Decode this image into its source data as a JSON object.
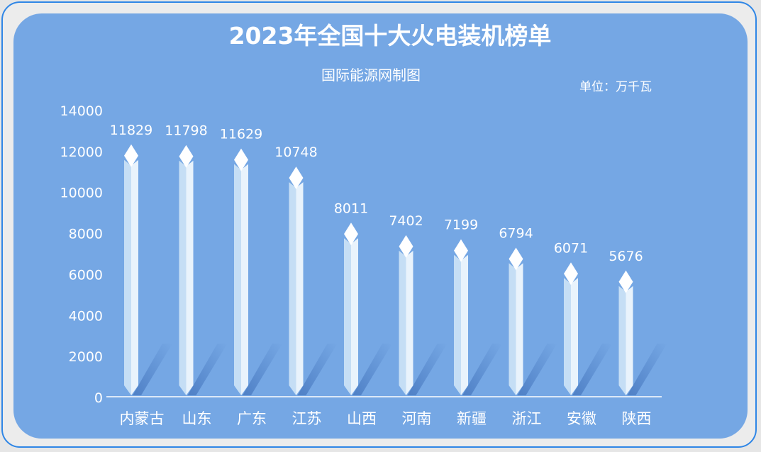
{
  "chart_data": {
    "type": "bar",
    "title": "2023年全国十大火电装机榜单",
    "subtitle": "国际能源网制图",
    "unit_label": "单位：万千瓦",
    "categories": [
      "内蒙古",
      "山东",
      "广东",
      "江苏",
      "山西",
      "河南",
      "新疆",
      "浙江",
      "安徽",
      "陕西"
    ],
    "values": [
      11829,
      11798,
      11629,
      10748,
      8011,
      7402,
      7199,
      6794,
      6071,
      5676
    ],
    "yticks": [
      "0",
      "2000",
      "4000",
      "6000",
      "8000",
      "10000",
      "12000",
      "14000"
    ],
    "ylim": [
      0,
      14000
    ],
    "grid": false,
    "colors": {
      "panel": "#75a7e4",
      "bar_front": "#c5def5",
      "bar_side": "#e9f3fc",
      "bar_top": "#ffffff",
      "shadow": "#5585c9",
      "text": "#ffffff"
    }
  }
}
